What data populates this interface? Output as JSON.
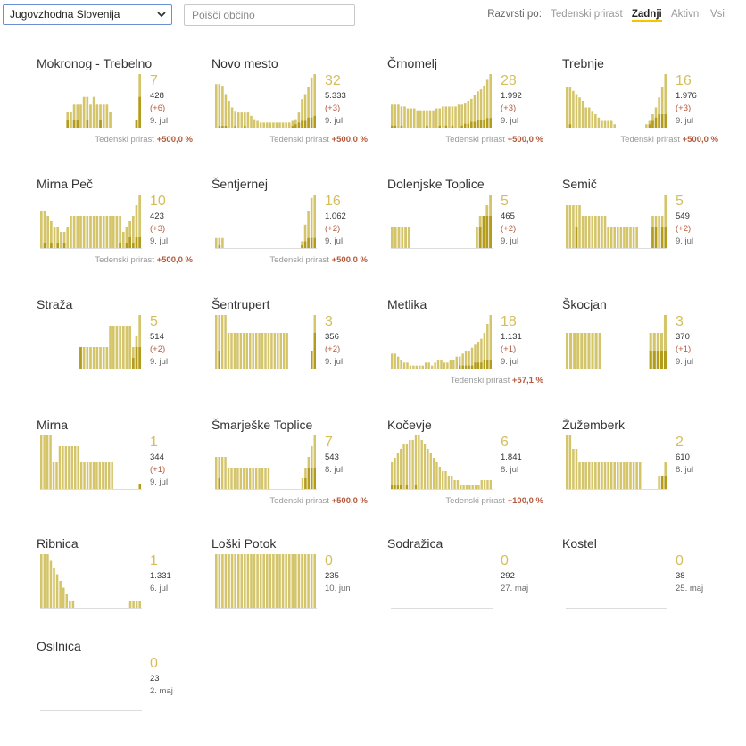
{
  "toolbar": {
    "region": "Jugovzhodna Slovenija",
    "search_placeholder": "Poišči občino",
    "sort_label": "Razvrsti po:",
    "sort_options": [
      "Tedenski prirast",
      "Zadnji",
      "Aktivni",
      "Vsi"
    ],
    "sort_active": "Zadnji"
  },
  "colors": {
    "bar_light": "#d4c46a",
    "bar_dark": "#b39b1b",
    "delta": "#b55a3c",
    "active_tab": "#f2c500"
  },
  "growth_label": "Tedenski prirast",
  "cards": [
    {
      "name": "Mokronog - Trebelno",
      "active": "7",
      "total": "428",
      "delta": "(+6)",
      "date": "9. jul",
      "growth": "+500,0 %",
      "bars": [
        0,
        0,
        0,
        0,
        0,
        0,
        0,
        0,
        2,
        2,
        3,
        3,
        3,
        4,
        4,
        3,
        4,
        3,
        3,
        3,
        3,
        2,
        0,
        0,
        0,
        0,
        0,
        0,
        0,
        1,
        7
      ],
      "dark": [
        0,
        0,
        0,
        0,
        0,
        0,
        0,
        0,
        1,
        0,
        1,
        1,
        0,
        0,
        1,
        0,
        0,
        0,
        1,
        0,
        0,
        0,
        0,
        0,
        0,
        0,
        0,
        0,
        0,
        1,
        4
      ]
    },
    {
      "name": "Novo mesto",
      "active": "32",
      "total": "5.333",
      "delta": "(+3)",
      "date": "9. jul",
      "growth": "+500,0 %",
      "bars": [
        26,
        26,
        25,
        20,
        16,
        12,
        10,
        9,
        9,
        9,
        9,
        7,
        5,
        4,
        3,
        3,
        3,
        3,
        3,
        3,
        3,
        3,
        3,
        3,
        4,
        5,
        9,
        17,
        20,
        24,
        30,
        32
      ],
      "dark": [
        0,
        1,
        1,
        1,
        0,
        0,
        1,
        0,
        0,
        1,
        0,
        0,
        0,
        0,
        0,
        0,
        0,
        0,
        0,
        0,
        0,
        0,
        0,
        0,
        1,
        2,
        3,
        4,
        4,
        6,
        6,
        7
      ]
    },
    {
      "name": "Črnomelj",
      "active": "28",
      "total": "1.992",
      "delta": "(+3)",
      "date": "9. jul",
      "growth": "+500,0 %",
      "bars": [
        12,
        12,
        12,
        11,
        11,
        10,
        10,
        10,
        9,
        9,
        9,
        9,
        9,
        9,
        10,
        10,
        11,
        11,
        11,
        11,
        11,
        12,
        12,
        13,
        14,
        15,
        17,
        19,
        20,
        22,
        25,
        28
      ],
      "dark": [
        1,
        1,
        0,
        1,
        0,
        0,
        0,
        0,
        0,
        0,
        0,
        1,
        0,
        0,
        0,
        1,
        0,
        1,
        0,
        1,
        0,
        0,
        1,
        2,
        2,
        3,
        3,
        4,
        4,
        4,
        5,
        5
      ]
    },
    {
      "name": "Trebnje",
      "active": "16",
      "total": "1.976",
      "delta": "(+3)",
      "date": "9. jul",
      "growth": "+500,0 %",
      "bars": [
        12,
        12,
        11,
        10,
        9,
        8,
        6,
        6,
        5,
        4,
        3,
        2,
        2,
        2,
        2,
        1,
        0,
        0,
        0,
        0,
        0,
        0,
        0,
        0,
        0,
        1,
        2,
        4,
        6,
        9,
        12,
        16
      ],
      "dark": [
        0,
        1,
        0,
        0,
        0,
        0,
        0,
        0,
        0,
        0,
        0,
        0,
        0,
        0,
        0,
        0,
        0,
        0,
        0,
        0,
        0,
        0,
        0,
        0,
        0,
        0,
        1,
        2,
        3,
        4,
        4,
        4
      ]
    },
    {
      "name": "Mirna Peč",
      "active": "10",
      "total": "423",
      "delta": "(+3)",
      "date": "9. jul",
      "growth": "+500,0 %",
      "bars": [
        7,
        7,
        6,
        5,
        4,
        4,
        3,
        3,
        4,
        6,
        6,
        6,
        6,
        6,
        6,
        6,
        6,
        6,
        6,
        6,
        6,
        6,
        6,
        6,
        6,
        3,
        4,
        5,
        6,
        8,
        10
      ],
      "dark": [
        0,
        1,
        0,
        1,
        0,
        1,
        0,
        1,
        0,
        0,
        0,
        0,
        0,
        0,
        0,
        0,
        0,
        0,
        0,
        0,
        0,
        0,
        0,
        0,
        1,
        0,
        1,
        2,
        1,
        2,
        2
      ]
    },
    {
      "name": "Šentjernej",
      "active": "16",
      "total": "1.062",
      "delta": "(+2)",
      "date": "9. jul",
      "growth": "+500,0 %",
      "bars": [
        3,
        3,
        3,
        0,
        0,
        0,
        0,
        0,
        0,
        0,
        0,
        0,
        0,
        0,
        0,
        0,
        0,
        0,
        0,
        0,
        0,
        0,
        0,
        0,
        0,
        0,
        0,
        2,
        7,
        11,
        15,
        16
      ],
      "dark": [
        0,
        1,
        0,
        0,
        0,
        0,
        0,
        0,
        0,
        0,
        0,
        0,
        0,
        0,
        0,
        0,
        0,
        0,
        0,
        0,
        0,
        0,
        0,
        0,
        0,
        0,
        0,
        1,
        2,
        3,
        3,
        3
      ]
    },
    {
      "name": "Dolenjske Toplice",
      "active": "5",
      "total": "465",
      "delta": "(+2)",
      "date": "9. jul",
      "growth": "",
      "bars": [
        2,
        2,
        2,
        2,
        2,
        2,
        0,
        0,
        0,
        0,
        0,
        0,
        0,
        0,
        0,
        0,
        0,
        0,
        0,
        0,
        0,
        0,
        0,
        0,
        0,
        2,
        3,
        3,
        4,
        5
      ],
      "dark": [
        0,
        0,
        0,
        0,
        0,
        0,
        0,
        0,
        0,
        0,
        0,
        0,
        0,
        0,
        0,
        0,
        0,
        0,
        0,
        0,
        0,
        0,
        0,
        0,
        0,
        0,
        2,
        3,
        3,
        3
      ]
    },
    {
      "name": "Semič",
      "active": "5",
      "total": "549",
      "delta": "(+2)",
      "date": "9. jul",
      "growth": "",
      "bars": [
        4,
        4,
        4,
        4,
        4,
        3,
        3,
        3,
        3,
        3,
        3,
        3,
        3,
        2,
        2,
        2,
        2,
        2,
        2,
        2,
        2,
        2,
        2,
        0,
        0,
        0,
        0,
        3,
        3,
        3,
        3,
        5
      ],
      "dark": [
        0,
        0,
        0,
        2,
        0,
        0,
        0,
        0,
        0,
        0,
        0,
        0,
        0,
        0,
        0,
        0,
        0,
        0,
        0,
        0,
        0,
        0,
        0,
        0,
        0,
        0,
        0,
        2,
        2,
        0,
        2,
        2
      ]
    },
    {
      "name": "Straža",
      "active": "5",
      "total": "514",
      "delta": "(+2)",
      "date": "9. jul",
      "growth": "",
      "bars": [
        0,
        0,
        0,
        0,
        0,
        0,
        0,
        0,
        0,
        0,
        0,
        0,
        2,
        2,
        2,
        2,
        2,
        2,
        2,
        2,
        2,
        4,
        4,
        4,
        4,
        4,
        4,
        4,
        2,
        3,
        5
      ],
      "dark": [
        0,
        0,
        0,
        0,
        0,
        0,
        0,
        0,
        0,
        0,
        0,
        0,
        2,
        0,
        0,
        0,
        0,
        0,
        0,
        0,
        0,
        0,
        0,
        0,
        0,
        0,
        0,
        0,
        1,
        2,
        2
      ]
    },
    {
      "name": "Šentrupert",
      "active": "3",
      "total": "356",
      "delta": "(+2)",
      "date": "9. jul",
      "growth": "",
      "bars": [
        3,
        3,
        3,
        3,
        2,
        2,
        2,
        2,
        2,
        2,
        2,
        2,
        2,
        2,
        2,
        2,
        2,
        2,
        2,
        2,
        2,
        2,
        2,
        2,
        0,
        0,
        0,
        0,
        0,
        0,
        0,
        1,
        3
      ],
      "dark": [
        0,
        1,
        0,
        0,
        0,
        0,
        0,
        0,
        0,
        0,
        0,
        0,
        0,
        0,
        0,
        0,
        0,
        0,
        0,
        0,
        0,
        0,
        0,
        0,
        0,
        0,
        0,
        0,
        0,
        0,
        0,
        1,
        2
      ]
    },
    {
      "name": "Metlika",
      "active": "18",
      "total": "1.131",
      "delta": "(+1)",
      "date": "9. jul",
      "growth": "+57,1 %",
      "bars": [
        5,
        5,
        4,
        3,
        2,
        2,
        1,
        1,
        1,
        1,
        1,
        2,
        2,
        1,
        2,
        3,
        3,
        2,
        2,
        3,
        3,
        4,
        4,
        5,
        6,
        6,
        7,
        8,
        9,
        10,
        12,
        15,
        18
      ],
      "dark": [
        0,
        0,
        0,
        0,
        0,
        0,
        0,
        0,
        0,
        0,
        0,
        0,
        0,
        0,
        0,
        0,
        0,
        0,
        0,
        0,
        0,
        0,
        1,
        1,
        1,
        1,
        1,
        2,
        2,
        2,
        3,
        3,
        3
      ]
    },
    {
      "name": "Škocjan",
      "active": "3",
      "total": "370",
      "delta": "(+1)",
      "date": "9. jul",
      "growth": "",
      "bars": [
        2,
        2,
        2,
        2,
        2,
        2,
        2,
        2,
        2,
        2,
        0,
        0,
        0,
        0,
        0,
        0,
        0,
        0,
        0,
        0,
        0,
        0,
        0,
        2,
        2,
        2,
        2,
        3
      ],
      "dark": [
        0,
        0,
        0,
        0,
        0,
        0,
        0,
        0,
        0,
        0,
        0,
        0,
        0,
        0,
        0,
        0,
        0,
        0,
        0,
        0,
        0,
        0,
        0,
        1,
        1,
        1,
        1,
        1
      ]
    },
    {
      "name": "Mirna",
      "active": "1",
      "total": "344",
      "delta": "(+1)",
      "date": "9. jul",
      "growth": "",
      "bars": [
        2,
        2,
        2,
        2,
        1,
        1,
        1.6,
        1.6,
        1.6,
        1.6,
        1.6,
        1.6,
        1.6,
        1,
        1,
        1,
        1,
        1,
        1,
        1,
        1,
        1,
        1,
        1,
        0,
        0,
        0,
        0,
        0,
        0,
        0,
        0,
        0.2
      ],
      "dark": [
        0,
        0,
        0,
        0,
        0,
        0,
        0,
        0,
        0,
        0,
        0,
        0,
        0,
        0,
        0,
        0,
        0,
        0,
        0,
        0,
        0,
        0,
        0,
        0,
        0,
        0,
        0,
        0,
        0,
        0,
        0,
        0,
        0.2
      ]
    },
    {
      "name": "Šmarješke Toplice",
      "active": "7",
      "total": "543",
      "delta": "",
      "date": "8. jul",
      "growth": "+500,0 %",
      "bars": [
        3,
        3,
        3,
        3,
        2,
        2,
        2,
        2,
        2,
        2,
        2,
        2,
        2,
        2,
        2,
        2,
        2,
        2,
        0,
        0,
        0,
        0,
        0,
        0,
        0,
        0,
        0,
        0,
        1,
        2,
        3,
        4,
        5
      ],
      "dark": [
        0,
        1,
        0,
        0,
        0,
        0,
        0,
        0,
        0,
        0,
        0,
        0,
        0,
        0,
        0,
        0,
        0,
        0,
        0,
        0,
        0,
        0,
        0,
        0,
        0,
        0,
        0,
        0,
        0,
        1,
        2,
        2,
        2
      ]
    },
    {
      "name": "Kočevje",
      "active": "6",
      "total": "1.841",
      "delta": "",
      "date": "8. jul",
      "growth": "+100,0 %",
      "bars": [
        6,
        7,
        8,
        9,
        10,
        10,
        11,
        11,
        12,
        12,
        11,
        10,
        9,
        8,
        7,
        6,
        5,
        4,
        4,
        3,
        3,
        2,
        2,
        1,
        1,
        1,
        1,
        1,
        1,
        1,
        2,
        2,
        2,
        2
      ],
      "dark": [
        1,
        1,
        1,
        1,
        0,
        1,
        0,
        0,
        1,
        0,
        0,
        0,
        0,
        0,
        0,
        0,
        0,
        0,
        0,
        0,
        0,
        0,
        0,
        0,
        0,
        0,
        0,
        0,
        0,
        0,
        0,
        0,
        0,
        0
      ]
    },
    {
      "name": "Žužemberk",
      "active": "2",
      "total": "610",
      "delta": "",
      "date": "8. jul",
      "growth": "",
      "bars": [
        4,
        4,
        3,
        3,
        2,
        2,
        2,
        2,
        2,
        2,
        2,
        2,
        2,
        2,
        2,
        2,
        2,
        2,
        2,
        2,
        2,
        2,
        2,
        2,
        0,
        0,
        0,
        0,
        0,
        1,
        1,
        2
      ],
      "dark": [
        0,
        0,
        0,
        0,
        0,
        0,
        0,
        0,
        0,
        0,
        0,
        0,
        0,
        0,
        0,
        0,
        0,
        0,
        0,
        0,
        0,
        0,
        0,
        0,
        0,
        0,
        0,
        0,
        0,
        0,
        1,
        1
      ]
    },
    {
      "name": "Ribnica",
      "active": "1",
      "total": "1.331",
      "delta": "",
      "date": "6. jul",
      "growth": "",
      "bars": [
        8,
        8,
        8,
        7,
        6,
        5,
        4,
        3,
        2,
        1,
        1,
        0,
        0,
        0,
        0,
        0,
        0,
        0,
        0,
        0,
        0,
        0,
        0,
        0,
        0,
        0,
        0,
        0,
        1,
        1,
        1,
        1
      ],
      "dark": [
        0,
        0,
        0,
        0,
        0,
        0,
        0,
        0,
        0,
        0,
        0,
        0,
        0,
        0,
        0,
        0,
        0,
        0,
        0,
        0,
        0,
        0,
        0,
        0,
        0,
        0,
        0,
        0,
        0,
        0,
        0,
        0
      ]
    },
    {
      "name": "Loški Potok",
      "active": "0",
      "total": "235",
      "delta": "",
      "date": "10. jun",
      "growth": "",
      "bars": [
        3,
        3,
        3,
        3,
        3,
        3,
        3,
        3,
        3,
        3,
        3,
        3,
        3,
        3,
        3,
        3,
        3,
        3,
        3,
        3,
        3,
        3,
        3,
        3,
        3,
        3,
        3,
        3,
        3,
        3,
        3,
        3
      ],
      "dark": [
        0,
        0,
        0,
        0,
        0,
        0,
        0,
        0,
        0,
        0,
        0,
        0,
        0,
        0,
        0,
        0,
        0,
        0,
        0,
        0,
        0,
        0,
        0,
        0,
        0,
        0,
        0,
        0,
        0,
        0,
        0,
        0
      ]
    },
    {
      "name": "Sodražica",
      "active": "0",
      "total": "292",
      "delta": "",
      "date": "27. maj",
      "growth": "",
      "bars": [],
      "dark": []
    },
    {
      "name": "Kostel",
      "active": "0",
      "total": "38",
      "delta": "",
      "date": "25. maj",
      "growth": "",
      "bars": [],
      "dark": []
    },
    {
      "name": "Osilnica",
      "active": "0",
      "total": "23",
      "delta": "",
      "date": "2. maj",
      "growth": "",
      "bars": [],
      "dark": []
    }
  ]
}
